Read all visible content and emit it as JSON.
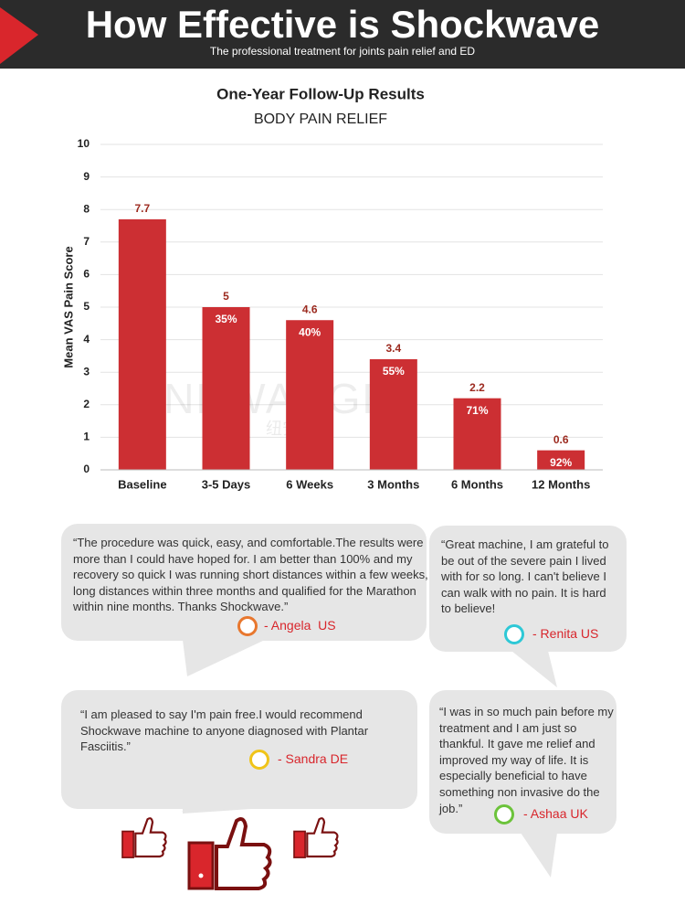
{
  "header": {
    "title": "How Effective is Shockwave",
    "subtitle": "The professional treatment for joints pain relief and ED"
  },
  "chart_data": {
    "type": "bar",
    "title": "One-Year Follow-Up Results",
    "subtitle": "BODY PAIN RELIEF",
    "y_label": "Mean VAS Pain Score",
    "categories": [
      "Baseline",
      "3-5 Days",
      "6 Weeks",
      "3 Months",
      "6 Months",
      "12 Months"
    ],
    "values": [
      7.7,
      5,
      4.6,
      3.4,
      2.2,
      0.6
    ],
    "reduction_labels": [
      "35%",
      "40%",
      "55%",
      "71%",
      "92%"
    ],
    "color": "#cc2f33",
    "ylim": [
      0,
      10
    ],
    "yticks": [
      0,
      1,
      2,
      3,
      4,
      5,
      6,
      7,
      8,
      9,
      10
    ],
    "grid": true,
    "watermark": "NEWANGEL",
    "watermark_sub": "纽安美"
  },
  "testimonials": [
    {
      "quote": "“The procedure was quick, easy, and comfortable.The results were more than I could have hoped for. I am better than 100% and my recovery so quick I was running short distances within a few weeks, long distances within three months and qualified for the Marathon within nine months. Thanks Shockwave.”",
      "author": "- Angela  US"
    },
    {
      "quote": "“Great machine, I am grateful to be out of the severe pain I lived with for so long. I can't believe I can walk with no pain. It is hard to believe!",
      "author": "- Renita US"
    },
    {
      "quote": "“I am pleased to say I'm pain free.I would recommend Shockwave machine to anyone diagnosed with Plantar Fasciitis.”",
      "author": "- Sandra DE"
    },
    {
      "quote": "“I was in so much pain before my treatment and I am just so thankful. It gave me relief and improved my way of life. It is especially beneficial to have something non invasive do the job.”",
      "author": "- Ashaa UK"
    }
  ]
}
